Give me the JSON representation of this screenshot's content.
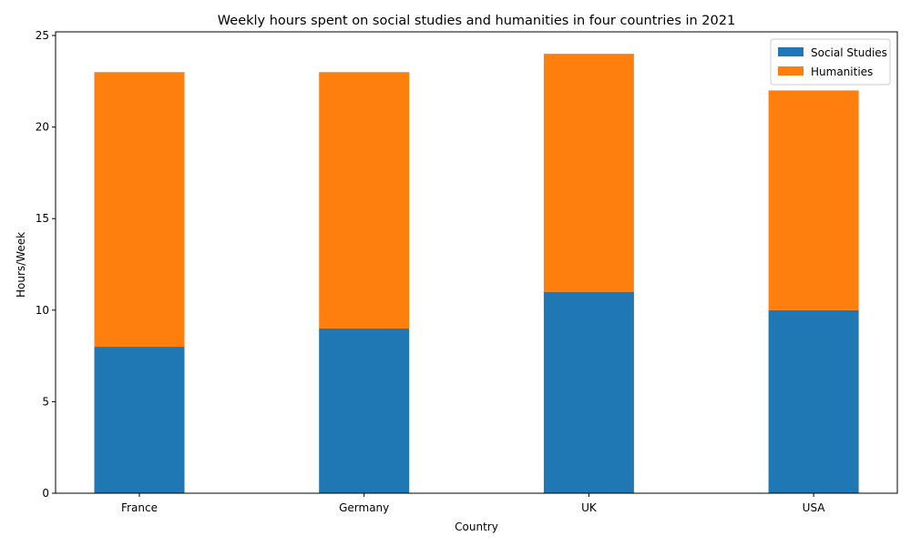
{
  "chart_data": {
    "type": "bar",
    "stacked": true,
    "title": "Weekly hours spent on social studies and humanities in four countries in 2021",
    "xlabel": "Country",
    "ylabel": "Hours/Week",
    "categories": [
      "France",
      "Germany",
      "UK",
      "USA"
    ],
    "series": [
      {
        "name": "Social Studies",
        "values": [
          8,
          9,
          11,
          10
        ],
        "color": "#1f77b4"
      },
      {
        "name": "Humanities",
        "values": [
          15,
          14,
          13,
          12
        ],
        "color": "#ff7f0e"
      }
    ],
    "ylim": [
      0,
      25.2
    ],
    "yticks": [
      0,
      5,
      10,
      15,
      20,
      25
    ],
    "grid": false,
    "legend_position": "top-right"
  }
}
